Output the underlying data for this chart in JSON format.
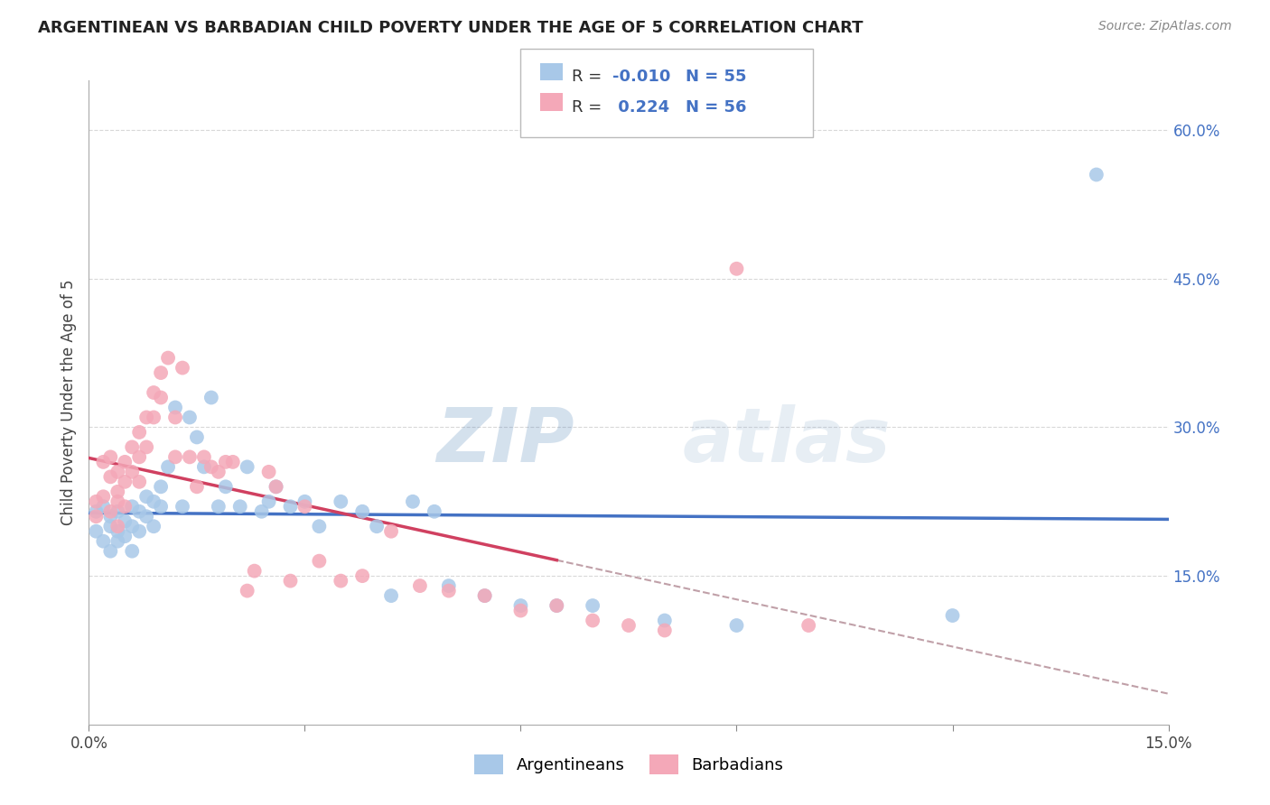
{
  "title": "ARGENTINEAN VS BARBADIAN CHILD POVERTY UNDER THE AGE OF 5 CORRELATION CHART",
  "source": "Source: ZipAtlas.com",
  "ylabel": "Child Poverty Under the Age of 5",
  "xlim": [
    0.0,
    0.15
  ],
  "ylim": [
    0.0,
    0.65
  ],
  "yticks": [
    0.15,
    0.3,
    0.45,
    0.6
  ],
  "ytick_labels": [
    "15.0%",
    "30.0%",
    "45.0%",
    "60.0%"
  ],
  "xticks": [
    0.0,
    0.03,
    0.06,
    0.09,
    0.12,
    0.15
  ],
  "xtick_labels": [
    "0.0%",
    "",
    "",
    "",
    "",
    "15.0%"
  ],
  "R_argentinean": -0.01,
  "N_argentinean": 55,
  "R_barbadian": 0.224,
  "N_barbadian": 56,
  "color_argentinean": "#a8c8e8",
  "color_barbadian": "#f4a8b8",
  "line_color_argentinean": "#4472c4",
  "line_color_barbadian": "#d04060",
  "line_color_dashed": "#c0a0a8",
  "watermark_color": "#c8dff0",
  "argentinean_x": [
    0.001,
    0.001,
    0.002,
    0.002,
    0.003,
    0.003,
    0.003,
    0.004,
    0.004,
    0.004,
    0.005,
    0.005,
    0.006,
    0.006,
    0.006,
    0.007,
    0.007,
    0.008,
    0.008,
    0.009,
    0.009,
    0.01,
    0.01,
    0.011,
    0.012,
    0.013,
    0.014,
    0.015,
    0.016,
    0.017,
    0.018,
    0.019,
    0.021,
    0.022,
    0.024,
    0.025,
    0.026,
    0.028,
    0.03,
    0.032,
    0.035,
    0.038,
    0.04,
    0.042,
    0.045,
    0.048,
    0.05,
    0.055,
    0.06,
    0.065,
    0.07,
    0.08,
    0.09,
    0.12,
    0.14
  ],
  "argentinean_y": [
    0.215,
    0.195,
    0.22,
    0.185,
    0.21,
    0.2,
    0.175,
    0.195,
    0.215,
    0.185,
    0.205,
    0.19,
    0.22,
    0.2,
    0.175,
    0.215,
    0.195,
    0.23,
    0.21,
    0.225,
    0.2,
    0.24,
    0.22,
    0.26,
    0.32,
    0.22,
    0.31,
    0.29,
    0.26,
    0.33,
    0.22,
    0.24,
    0.22,
    0.26,
    0.215,
    0.225,
    0.24,
    0.22,
    0.225,
    0.2,
    0.225,
    0.215,
    0.2,
    0.13,
    0.225,
    0.215,
    0.14,
    0.13,
    0.12,
    0.12,
    0.12,
    0.105,
    0.1,
    0.11,
    0.555
  ],
  "barbadian_x": [
    0.001,
    0.001,
    0.002,
    0.002,
    0.003,
    0.003,
    0.003,
    0.004,
    0.004,
    0.004,
    0.004,
    0.005,
    0.005,
    0.005,
    0.006,
    0.006,
    0.007,
    0.007,
    0.007,
    0.008,
    0.008,
    0.009,
    0.009,
    0.01,
    0.01,
    0.011,
    0.012,
    0.012,
    0.013,
    0.014,
    0.015,
    0.016,
    0.017,
    0.018,
    0.019,
    0.02,
    0.022,
    0.023,
    0.025,
    0.026,
    0.028,
    0.03,
    0.032,
    0.035,
    0.038,
    0.042,
    0.046,
    0.05,
    0.055,
    0.06,
    0.065,
    0.07,
    0.075,
    0.08,
    0.09,
    0.1
  ],
  "barbadian_y": [
    0.225,
    0.21,
    0.265,
    0.23,
    0.27,
    0.25,
    0.215,
    0.255,
    0.235,
    0.225,
    0.2,
    0.265,
    0.245,
    0.22,
    0.28,
    0.255,
    0.295,
    0.27,
    0.245,
    0.31,
    0.28,
    0.335,
    0.31,
    0.355,
    0.33,
    0.37,
    0.31,
    0.27,
    0.36,
    0.27,
    0.24,
    0.27,
    0.26,
    0.255,
    0.265,
    0.265,
    0.135,
    0.155,
    0.255,
    0.24,
    0.145,
    0.22,
    0.165,
    0.145,
    0.15,
    0.195,
    0.14,
    0.135,
    0.13,
    0.115,
    0.12,
    0.105,
    0.1,
    0.095,
    0.46,
    0.1
  ]
}
